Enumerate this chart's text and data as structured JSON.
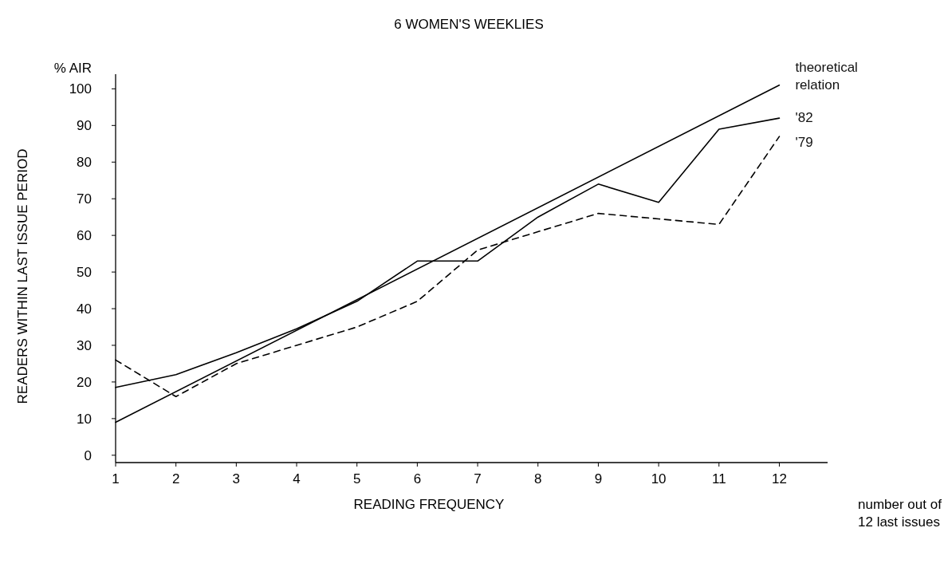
{
  "chart_data": {
    "type": "line",
    "title": "6 WOMEN'S WEEKLIES",
    "xlabel": "READING FREQUENCY",
    "ylabel": "READERS WITHIN LAST ISSUE PERIOD",
    "annotations": [
      "% AIR",
      "number out of\n12 last issues"
    ],
    "x": [
      1,
      2,
      3,
      4,
      5,
      6,
      7,
      8,
      9,
      10,
      11,
      12
    ],
    "series": [
      {
        "name": "theoretical\nrelation",
        "color": "#000000",
        "x": [
          1,
          12
        ],
        "values": [
          9,
          101
        ],
        "line_style": "solid"
      },
      {
        "name": "'82",
        "color": "#000000",
        "values": [
          18.5,
          22,
          28,
          34.5,
          42,
          53,
          53,
          65,
          74,
          69,
          89,
          92
        ],
        "line_style": "solid"
      },
      {
        "name": "'79",
        "color": "#000000",
        "values": [
          26,
          16,
          25,
          30,
          35,
          42,
          56,
          61,
          66,
          64.5,
          63,
          87
        ],
        "line_style": "dashed"
      }
    ],
    "xlim": [
      1,
      12.8
    ],
    "ylim": [
      -2,
      104
    ],
    "xticks": [
      1,
      2,
      3,
      4,
      5,
      6,
      7,
      8,
      9,
      10,
      11,
      12
    ],
    "yticks": [
      0,
      10,
      20,
      30,
      40,
      50,
      60,
      70,
      80,
      90,
      100
    ],
    "grid": false,
    "marker": "none"
  }
}
